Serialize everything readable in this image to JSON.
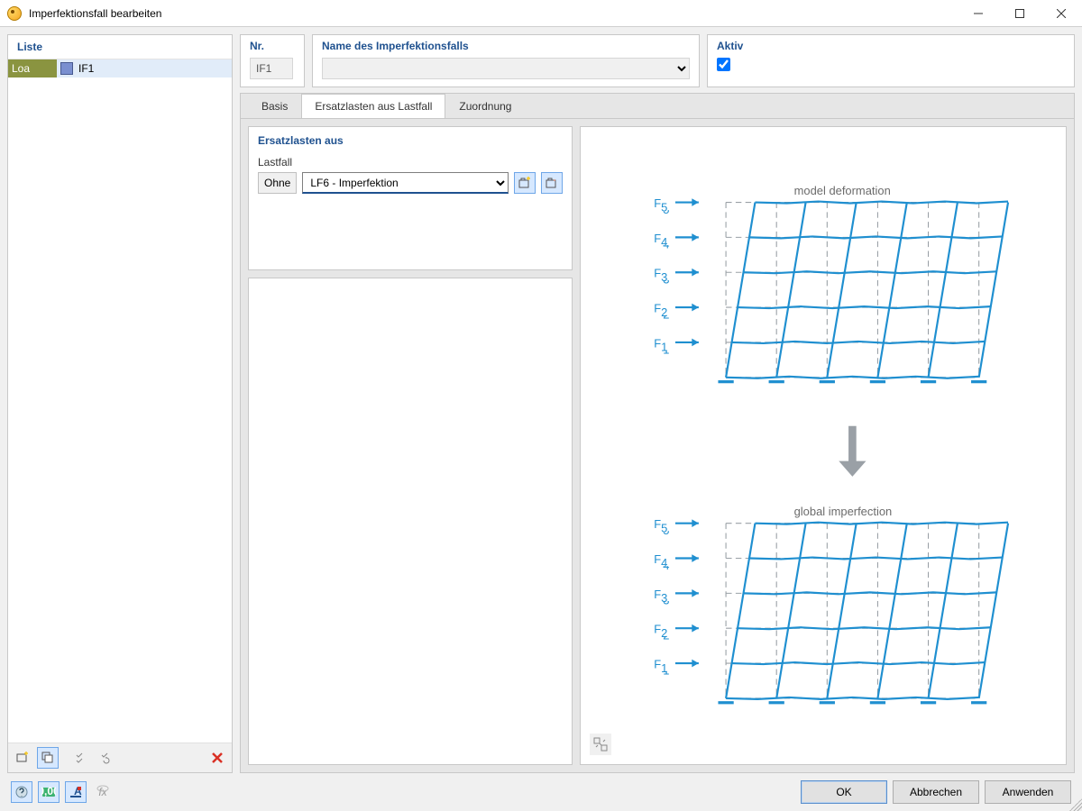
{
  "window": {
    "title": "Imperfektionsfall bearbeiten"
  },
  "list": {
    "header": "Liste",
    "col_a": "Loa",
    "col_b": "IF1"
  },
  "info": {
    "nr_label": "Nr.",
    "nr_value": "IF1",
    "name_label": "Name des Imperfektionsfalls",
    "name_value": "",
    "aktiv_label": "Aktiv",
    "aktiv_checked": true
  },
  "tabs": {
    "items": [
      "Basis",
      "Ersatzlasten aus Lastfall",
      "Zuordnung"
    ],
    "active_index": 1
  },
  "ersatz": {
    "title": "Ersatzlasten aus",
    "field_label": "Lastfall",
    "ohne": "Ohne",
    "selected": "LF6 - Imperfektion"
  },
  "diagram": {
    "top_title": "model deformation",
    "bottom_title": "global imperfection",
    "force_labels": [
      "F",
      "F",
      "F",
      "F",
      "F"
    ],
    "force_subs": [
      "5",
      "4",
      "3",
      "2",
      "1"
    ],
    "color_primary": "#1f8fd0",
    "color_text": "#6b6b6b",
    "color_dash": "#9aa0a6",
    "grid_support": "#1f8fd0",
    "cols": 5,
    "rows": 5
  },
  "buttons": {
    "ok": "OK",
    "cancel": "Abbrechen",
    "apply": "Anwenden"
  }
}
